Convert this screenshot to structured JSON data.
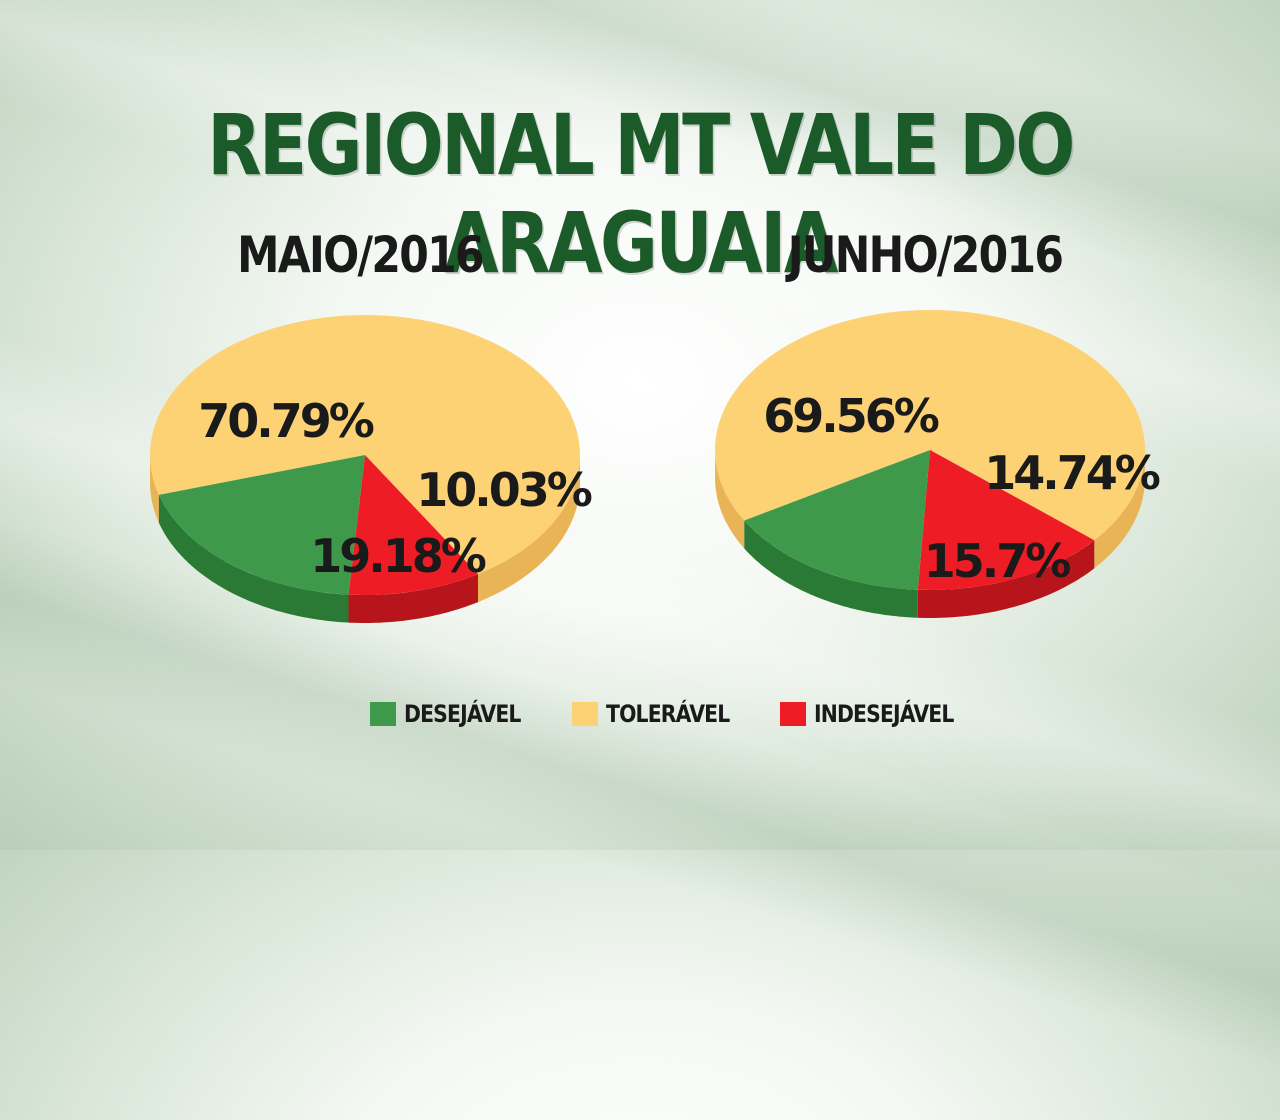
{
  "title": "REGIONAL MT VALE DO ARAGUAIA",
  "colors": {
    "desejavel": "#3e9a4a",
    "desejavel_side": "#2a7a36",
    "toleravel": "#fcd275",
    "toleravel_side": "#e9b455",
    "indesejavel": "#ee1c25",
    "indesejavel_side": "#b8141b",
    "title": "#1b5b2a"
  },
  "legend": [
    {
      "key": "desejavel",
      "label": "DESEJÁVEL"
    },
    {
      "key": "toleravel",
      "label": "TOLERÁVEL"
    },
    {
      "key": "indesejavel",
      "label": "INDESEJÁVEL"
    }
  ],
  "chart_data": [
    {
      "type": "pie",
      "title": "MAIO/2016",
      "slices": [
        {
          "key": "toleravel",
          "label": "TOLERÁVEL",
          "value": 70.79,
          "display": "70.79%"
        },
        {
          "key": "indesejavel",
          "label": "INDESEJÁVEL",
          "value": 10.03,
          "display": "10.03%"
        },
        {
          "key": "desejavel",
          "label": "DESEJÁVEL",
          "value": 19.18,
          "display": "19.18%"
        }
      ]
    },
    {
      "type": "pie",
      "title": "JUNHO/2016",
      "slices": [
        {
          "key": "toleravel",
          "label": "TOLERÁVEL",
          "value": 69.56,
          "display": "69.56%"
        },
        {
          "key": "indesejavel",
          "label": "INDESEJÁVEL",
          "value": 14.74,
          "display": "14.74%"
        },
        {
          "key": "desejavel",
          "label": "DESEJÁVEL",
          "value": 15.7,
          "display": "15.7%"
        }
      ]
    }
  ]
}
